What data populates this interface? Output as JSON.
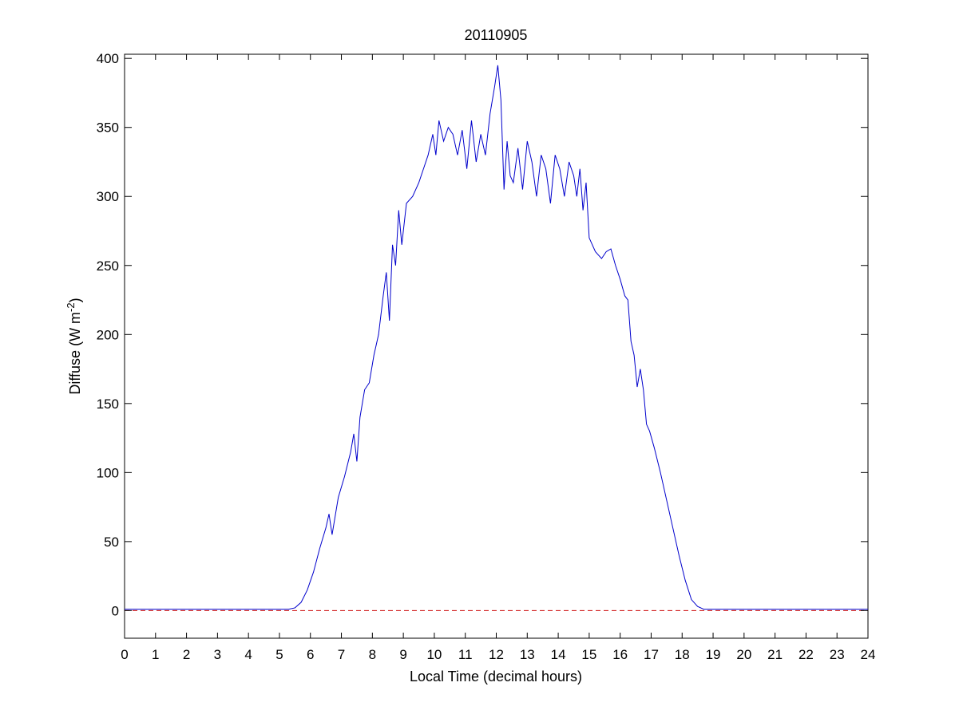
{
  "chart_data": {
    "type": "line",
    "title": "20110905",
    "xlabel": "Local Time (decimal hours)",
    "ylabel": "Diffuse (W m",
    "ylabel_superscript": "-2",
    "ylabel_suffix": ")",
    "xlim": [
      0,
      24
    ],
    "ylim": [
      -20,
      403
    ],
    "xticks": [
      0,
      1,
      2,
      3,
      4,
      5,
      6,
      7,
      8,
      9,
      10,
      11,
      12,
      13,
      14,
      15,
      16,
      17,
      18,
      19,
      20,
      21,
      22,
      23,
      24
    ],
    "yticks": [
      0,
      50,
      100,
      150,
      200,
      250,
      300,
      350,
      400
    ],
    "grid": false,
    "legend": "none",
    "series": [
      {
        "color": "#0000cc",
        "style": "solid",
        "x": [
          0,
          0.5,
          1,
          1.5,
          2,
          2.5,
          3,
          3.5,
          4,
          4.5,
          5,
          5.3,
          5.5,
          5.7,
          5.9,
          6.1,
          6.3,
          6.5,
          6.6,
          6.7,
          6.9,
          7.1,
          7.3,
          7.4,
          7.5,
          7.6,
          7.75,
          7.9,
          8.05,
          8.2,
          8.35,
          8.45,
          8.55,
          8.65,
          8.75,
          8.85,
          8.95,
          9.1,
          9.3,
          9.5,
          9.65,
          9.8,
          9.95,
          10.05,
          10.15,
          10.3,
          10.45,
          10.6,
          10.75,
          10.9,
          11.05,
          11.2,
          11.35,
          11.5,
          11.65,
          11.8,
          11.95,
          12.05,
          12.15,
          12.25,
          12.35,
          12.45,
          12.55,
          12.7,
          12.85,
          13,
          13.15,
          13.3,
          13.45,
          13.6,
          13.75,
          13.9,
          14.05,
          14.2,
          14.35,
          14.5,
          14.6,
          14.7,
          14.8,
          14.9,
          15,
          15.2,
          15.4,
          15.55,
          15.7,
          15.85,
          16,
          16.15,
          16.25,
          16.35,
          16.45,
          16.55,
          16.65,
          16.75,
          16.85,
          16.95,
          17.1,
          17.3,
          17.5,
          17.7,
          17.9,
          18.1,
          18.3,
          18.5,
          18.7,
          18.9,
          19.1,
          19.3,
          19.6,
          20,
          21,
          22,
          23,
          24
        ],
        "y": [
          1,
          1,
          1,
          1,
          1,
          1,
          1,
          1,
          1,
          1,
          1,
          1,
          2,
          6,
          15,
          28,
          45,
          60,
          70,
          55,
          82,
          97,
          115,
          128,
          108,
          140,
          160,
          165,
          185,
          200,
          228,
          245,
          210,
          265,
          250,
          290,
          265,
          295,
          300,
          310,
          320,
          330,
          345,
          330,
          355,
          340,
          350,
          345,
          330,
          348,
          320,
          355,
          325,
          345,
          330,
          360,
          380,
          395,
          370,
          305,
          340,
          315,
          310,
          335,
          305,
          340,
          325,
          300,
          330,
          320,
          295,
          330,
          320,
          300,
          325,
          315,
          300,
          320,
          290,
          310,
          270,
          260,
          255,
          260,
          262,
          250,
          240,
          228,
          225,
          195,
          185,
          162,
          175,
          160,
          135,
          130,
          118,
          100,
          80,
          60,
          40,
          22,
          8,
          3,
          1,
          1,
          1,
          1,
          1,
          1,
          1,
          1,
          1,
          1
        ]
      },
      {
        "color": "#cc0000",
        "style": "dashed",
        "x": [
          0,
          24
        ],
        "y": [
          0,
          0
        ]
      }
    ]
  }
}
